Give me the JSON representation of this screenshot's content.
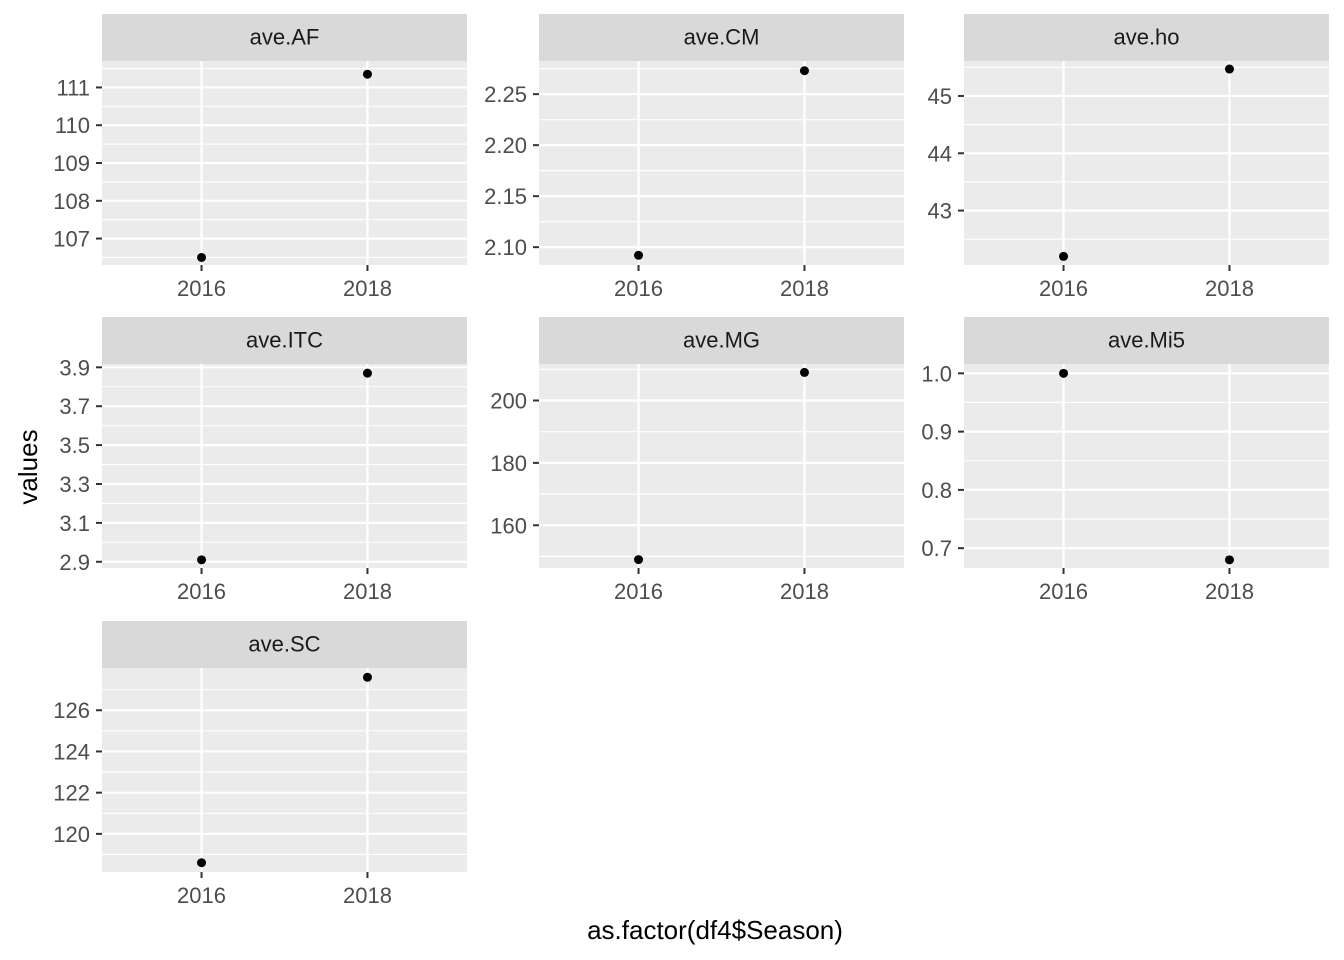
{
  "chart_data": {
    "type": "scatter",
    "xlabel": "as.factor(df4$Season)",
    "ylabel": "values",
    "categories": [
      "2016",
      "2018"
    ],
    "grid": true,
    "legend": "none",
    "colors": {
      "panel_bg": "#EBEBEB",
      "strip_bg": "#D9D9D9",
      "gridline": "#FFFFFF",
      "point": "#000000"
    },
    "panels": [
      {
        "title": "ave.AF",
        "values": [
          106.5,
          111.35
        ],
        "ylim": [
          106.3,
          111.7
        ],
        "yticks": [
          107,
          108,
          109,
          110,
          111
        ],
        "tick_labels": [
          "107",
          "108",
          "109",
          "110",
          "111"
        ]
      },
      {
        "title": "ave.CM",
        "values": [
          2.092,
          2.273
        ],
        "ylim": [
          2.0825,
          2.2825
        ],
        "yticks": [
          2.1,
          2.15,
          2.2,
          2.25
        ],
        "tick_labels": [
          "2.10",
          "2.15",
          "2.20",
          "2.25"
        ]
      },
      {
        "title": "ave.ho",
        "values": [
          42.2,
          45.47
        ],
        "ylim": [
          42.05,
          45.61
        ],
        "yticks": [
          43,
          44,
          45
        ],
        "tick_labels": [
          "43",
          "44",
          "45"
        ]
      },
      {
        "title": "ave.ITC",
        "values": [
          2.91,
          3.87
        ],
        "ylim": [
          2.868,
          3.917
        ],
        "yticks": [
          2.9,
          3.1,
          3.3,
          3.5,
          3.7,
          3.9
        ],
        "tick_labels": [
          "2.9",
          "3.1",
          "3.3",
          "3.5",
          "3.7",
          "3.9"
        ]
      },
      {
        "title": "ave.MG",
        "values": [
          149,
          209
        ],
        "ylim": [
          146.3,
          211.7
        ],
        "yticks": [
          160,
          180,
          200
        ],
        "tick_labels": [
          "160",
          "180",
          "200"
        ]
      },
      {
        "title": "ave.Mi5",
        "values": [
          1.0,
          0.68
        ],
        "ylim": [
          0.666,
          1.016
        ],
        "yticks": [
          0.7,
          0.8,
          0.9,
          1.0
        ],
        "tick_labels": [
          "0.7",
          "0.8",
          "0.9",
          "1.0"
        ]
      },
      {
        "title": "ave.SC",
        "values": [
          118.6,
          127.6
        ],
        "ylim": [
          118.15,
          128.05
        ],
        "yticks": [
          120,
          122,
          124,
          126
        ],
        "tick_labels": [
          "120",
          "122",
          "124",
          "126"
        ]
      }
    ]
  }
}
